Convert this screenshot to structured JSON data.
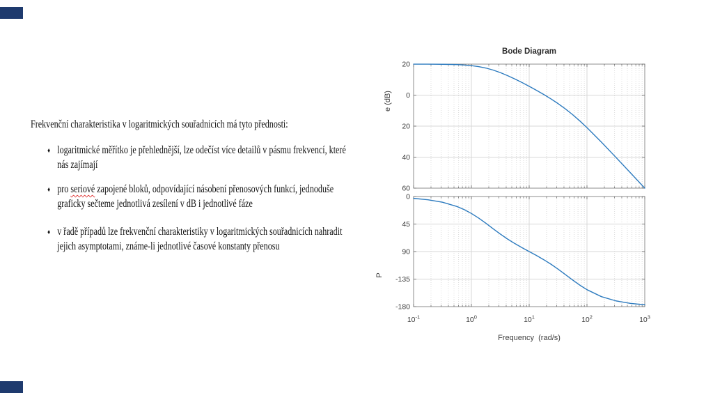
{
  "slide": {
    "decor": {
      "corner_color": "#1e3a6e"
    },
    "content": {
      "bullet_glyph": "♦",
      "heading": "Frekvenční charakteristika v logaritmických souřadnicích má tyto přednosti:",
      "bullets": [
        {
          "lines": [
            "logaritmické měřítko je přehlednější, lze odečíst více detailů v pásmu frekvencí, které",
            "nás zajímají"
          ]
        },
        {
          "pre": "pro ",
          "misspelled": "seriové",
          "post": " zapojené bloků, odpovídající násobení přenosových funkcí, jednoduše",
          "line2": "graficky sečteme jednotlivá zesílení v dB i jednotlivé fáze"
        },
        {
          "lines": [
            "v řadě případů lze frekvenční charakteristiky v logaritmických souřadnicích nahradit",
            "jejich asymptotami, známe-li jednotlivé časové konstanty přenosu"
          ]
        }
      ]
    }
  },
  "chart_data": {
    "type": "line",
    "title": "Bode Diagram",
    "xlabel": "Frequency  (rad/s)",
    "x_scale": "log",
    "xlim": [
      0.1,
      1000
    ],
    "xtick_exponents": [
      "-1",
      "0",
      "1",
      "2",
      "3"
    ],
    "line_color": "#2d7bbf",
    "grid": true,
    "frequencies_rad_s": [
      0.1,
      0.178,
      0.316,
      0.562,
      0.75,
      1,
      1.33,
      1.78,
      2.37,
      3.16,
      4.22,
      5.62,
      7.5,
      10,
      13.3,
      17.8,
      23.7,
      31.6,
      42.2,
      56.2,
      75,
      100,
      178,
      316,
      562,
      1000
    ],
    "subplots": [
      {
        "name": "magnitude",
        "ylabel_visible": "e (dB)",
        "ylim": [
          -60,
          20
        ],
        "yticks": [
          20,
          0,
          -20,
          -40,
          -60
        ],
        "ytick_labels_visible": [
          "20",
          "0",
          "20",
          "40",
          "60"
        ],
        "values": [
          19.99,
          19.97,
          19.89,
          19.67,
          19.42,
          19.03,
          18.4,
          17.47,
          16.18,
          14.54,
          12.6,
          10.45,
          8.12,
          5.68,
          3.15,
          0.45,
          -2.38,
          -5.45,
          -8.84,
          -12.53,
          -16.6,
          -20.97,
          -30.35,
          -40.09,
          -50.02,
          -60.01
        ]
      },
      {
        "name": "phase",
        "ylabel_visible": "P",
        "ylim": [
          -180,
          0
        ],
        "yticks": [
          0,
          -45,
          -90,
          -135,
          -180
        ],
        "ytick_labels_visible": [
          "0",
          "45",
          "90",
          "-135",
          "-180"
        ],
        "values": [
          -3.0,
          -5.3,
          -9.3,
          -16.3,
          -21.4,
          -27.7,
          -35.1,
          -43.7,
          -52.6,
          -61.3,
          -69.5,
          -76.8,
          -83.6,
          -90.0,
          -96.3,
          -103.2,
          -110.5,
          -118.7,
          -127.5,
          -136.3,
          -144.8,
          -152.3,
          -163.7,
          -170.6,
          -174.7,
          -177.0
        ]
      }
    ]
  }
}
